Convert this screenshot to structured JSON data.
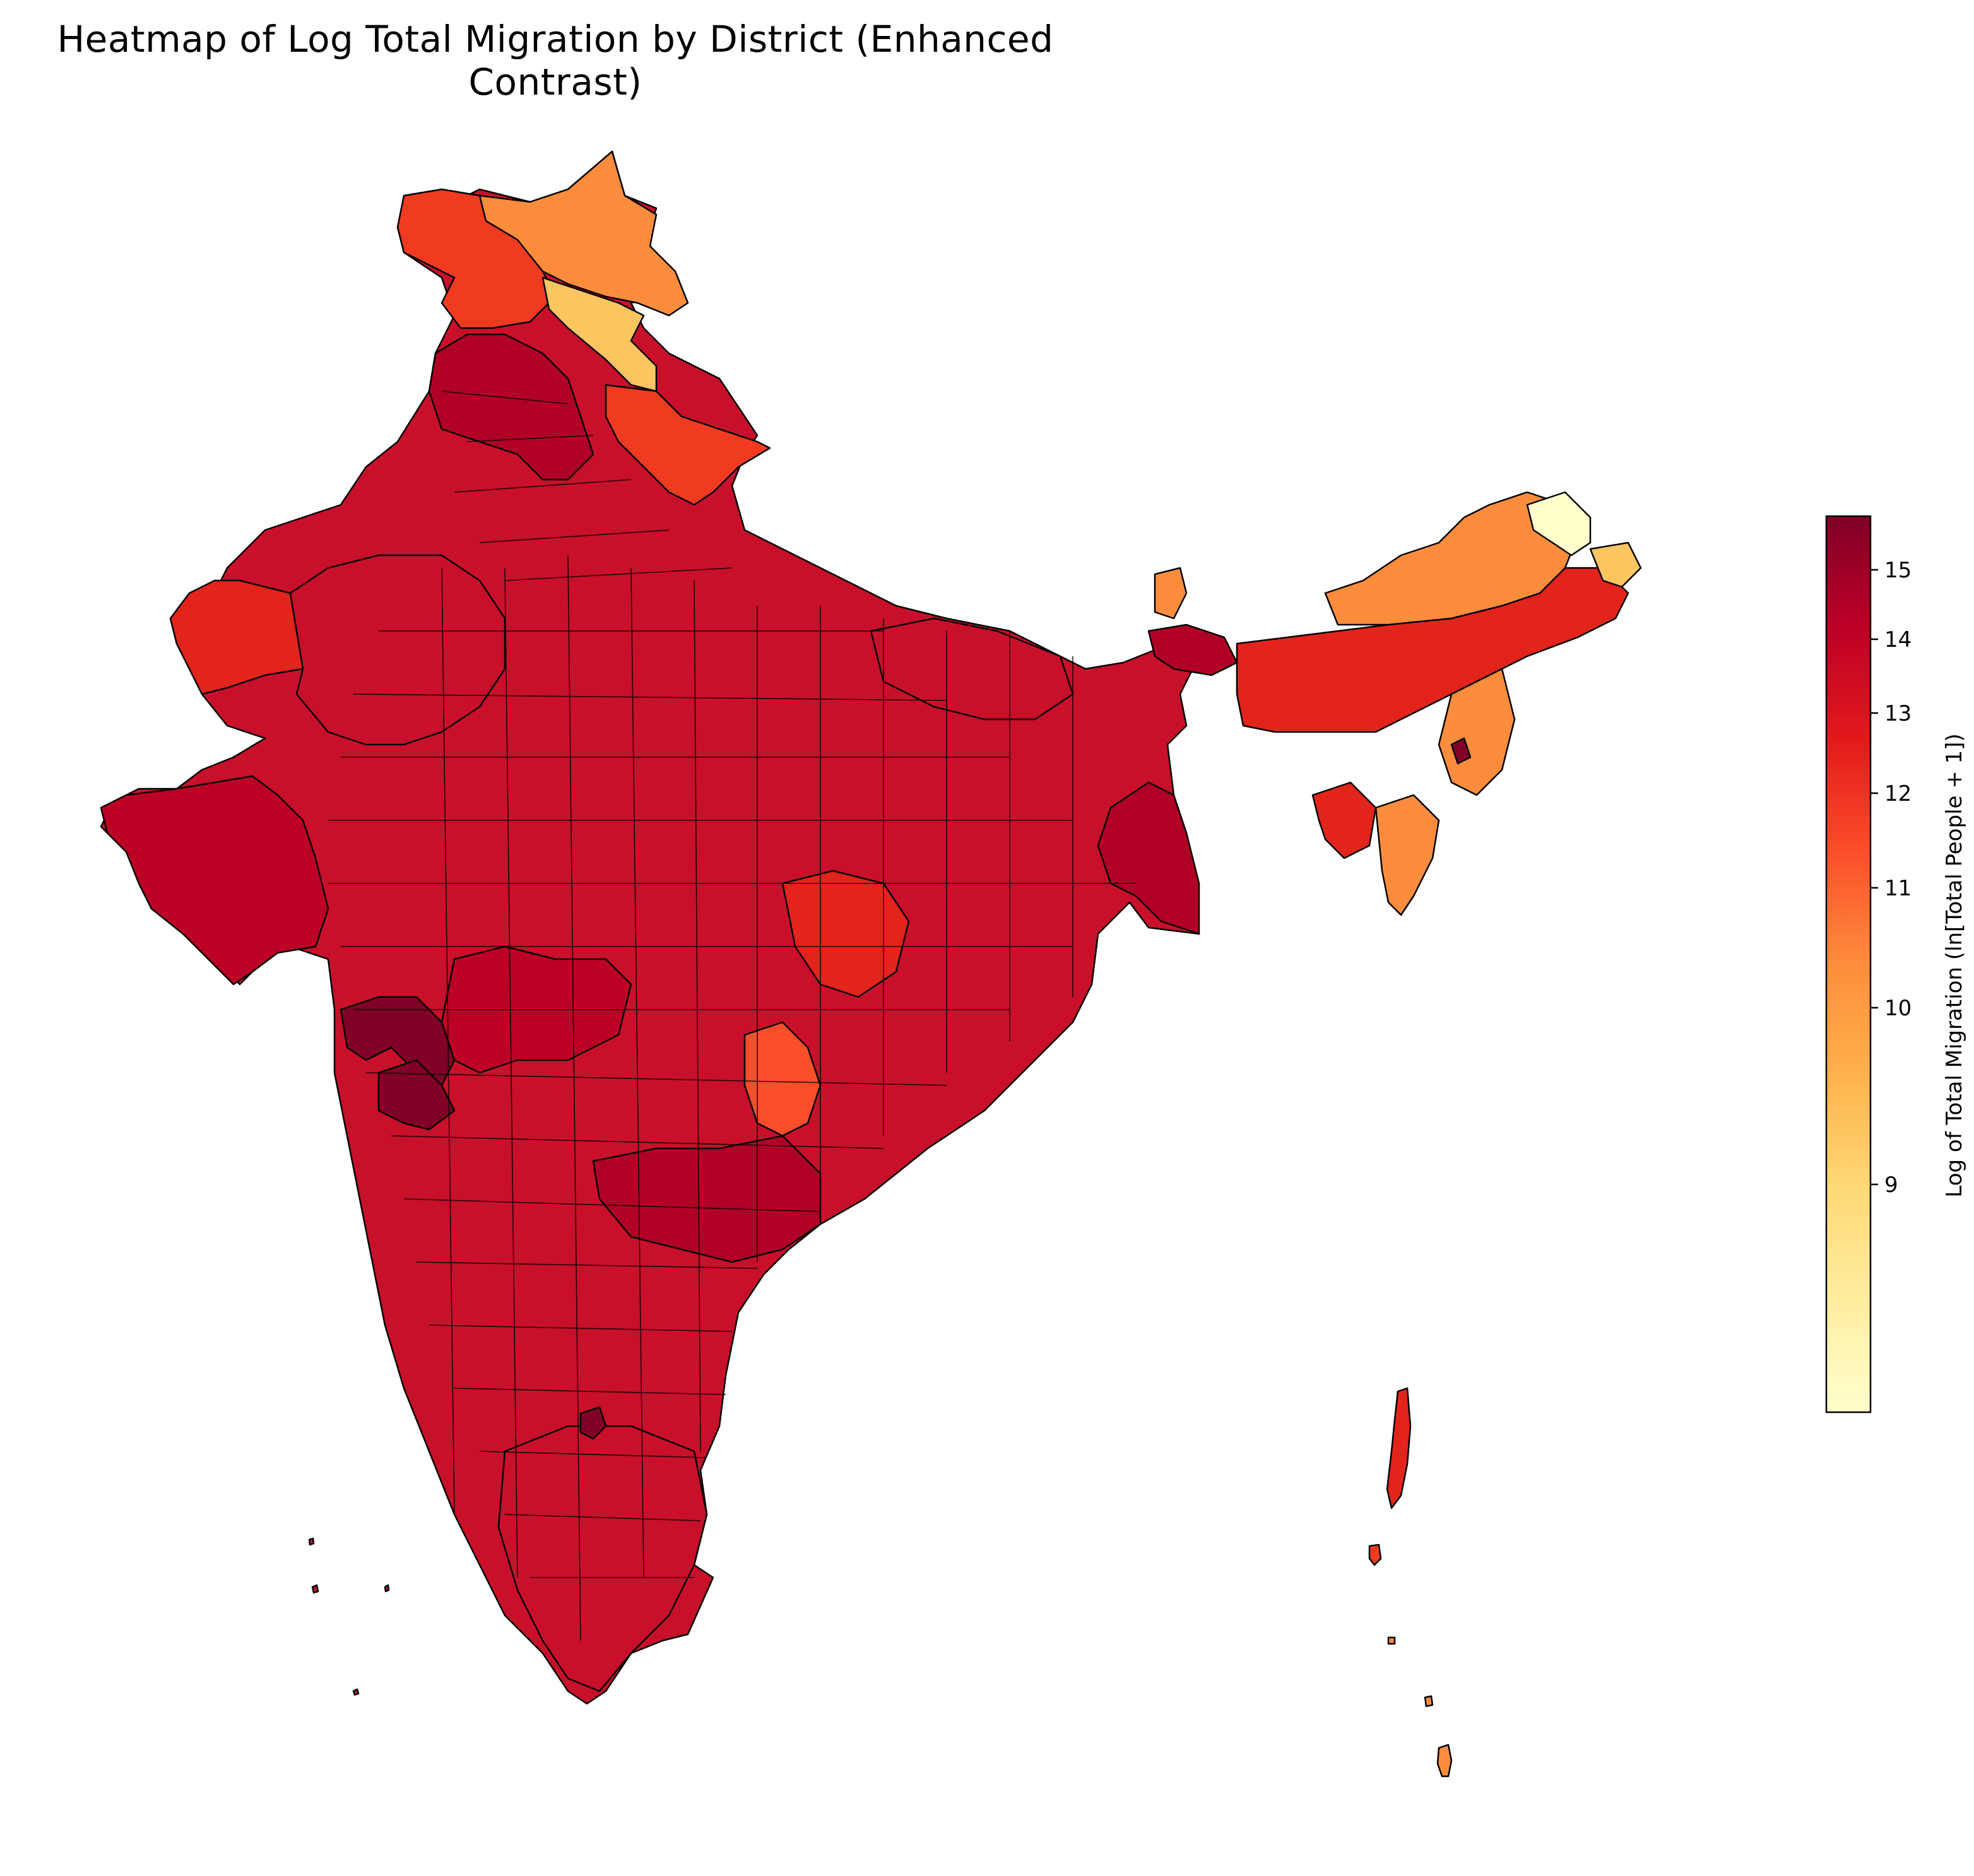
{
  "chart_data": {
    "type": "heatmap",
    "subtype": "choropleth",
    "title": "Heatmap of Log Total Migration by District (Enhanced Contrast)",
    "colorbar": {
      "label": "Log of Total Migration (ln[Total People + 1])",
      "ticks": [
        "9",
        "10",
        "11",
        "12",
        "13",
        "14",
        "15"
      ],
      "tick_values": [
        9,
        10,
        11,
        12,
        13,
        14,
        15
      ],
      "colormap": "YlOrRd",
      "colors": [
        "#ffffcc",
        "#ffeda0",
        "#fed976",
        "#feb24c",
        "#fd8d3c",
        "#fc4e2a",
        "#e31a1c",
        "#bd0026",
        "#800026"
      ]
    },
    "regions": [
      {
        "name": "Ladakh / northern Himalaya",
        "level": "orange"
      },
      {
        "name": "Arunachal Pradesh (far north-east)",
        "level": "light yellow"
      },
      {
        "name": "Mizoram / Manipur",
        "level": "orange"
      },
      {
        "name": "Indo-Gangetic plains and peninsula",
        "level": "dark red"
      },
      {
        "name": "Western Maharashtra",
        "level": "darkest red"
      }
    ]
  }
}
